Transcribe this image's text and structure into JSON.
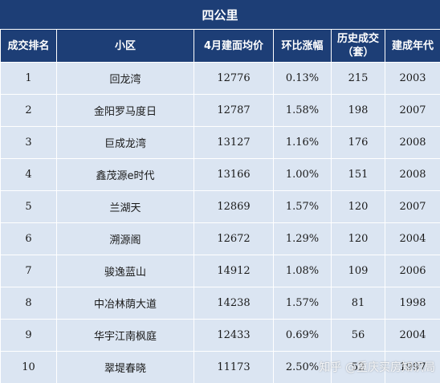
{
  "title": "四公里",
  "headers": [
    "成交排名",
    "小区",
    "4月建面均价",
    "环比涨幅",
    "历史成交（套）",
    "建成年代"
  ],
  "rows": [
    {
      "rank": "1",
      "name": "回龙湾",
      "price": "12776",
      "change": "0.13%",
      "deals": "215",
      "year": "2003"
    },
    {
      "rank": "2",
      "name": "金阳罗马度日",
      "price": "12787",
      "change": "1.58%",
      "deals": "198",
      "year": "2007"
    },
    {
      "rank": "3",
      "name": "巨成龙湾",
      "price": "13127",
      "change": "1.16%",
      "deals": "176",
      "year": "2008"
    },
    {
      "rank": "4",
      "name": "鑫茂源e时代",
      "price": "13166",
      "change": "1.00%",
      "deals": "151",
      "year": "2008"
    },
    {
      "rank": "5",
      "name": "兰湖天",
      "price": "12869",
      "change": "1.57%",
      "deals": "120",
      "year": "2007"
    },
    {
      "rank": "6",
      "name": "溯源阁",
      "price": "12672",
      "change": "1.29%",
      "deals": "120",
      "year": "2004"
    },
    {
      "rank": "7",
      "name": "骏逸蓝山",
      "price": "14912",
      "change": "1.08%",
      "deals": "109",
      "year": "2006"
    },
    {
      "rank": "8",
      "name": "中冶林荫大道",
      "price": "14238",
      "change": "1.57%",
      "deals": "81",
      "year": "1998"
    },
    {
      "rank": "9",
      "name": "华宇江南枫庭",
      "price": "12433",
      "change": "0.69%",
      "deals": "56",
      "year": "2004"
    },
    {
      "rank": "10",
      "name": "翠堤春晓",
      "price": "11173",
      "change": "2.50%",
      "deals": "52",
      "year": "1997"
    }
  ],
  "watermark": "知乎 @重庆买房知识局",
  "colors": {
    "header_bg": "#1d3e76",
    "row_bg": "#dbe5f2",
    "header_text": "#ffffff"
  }
}
